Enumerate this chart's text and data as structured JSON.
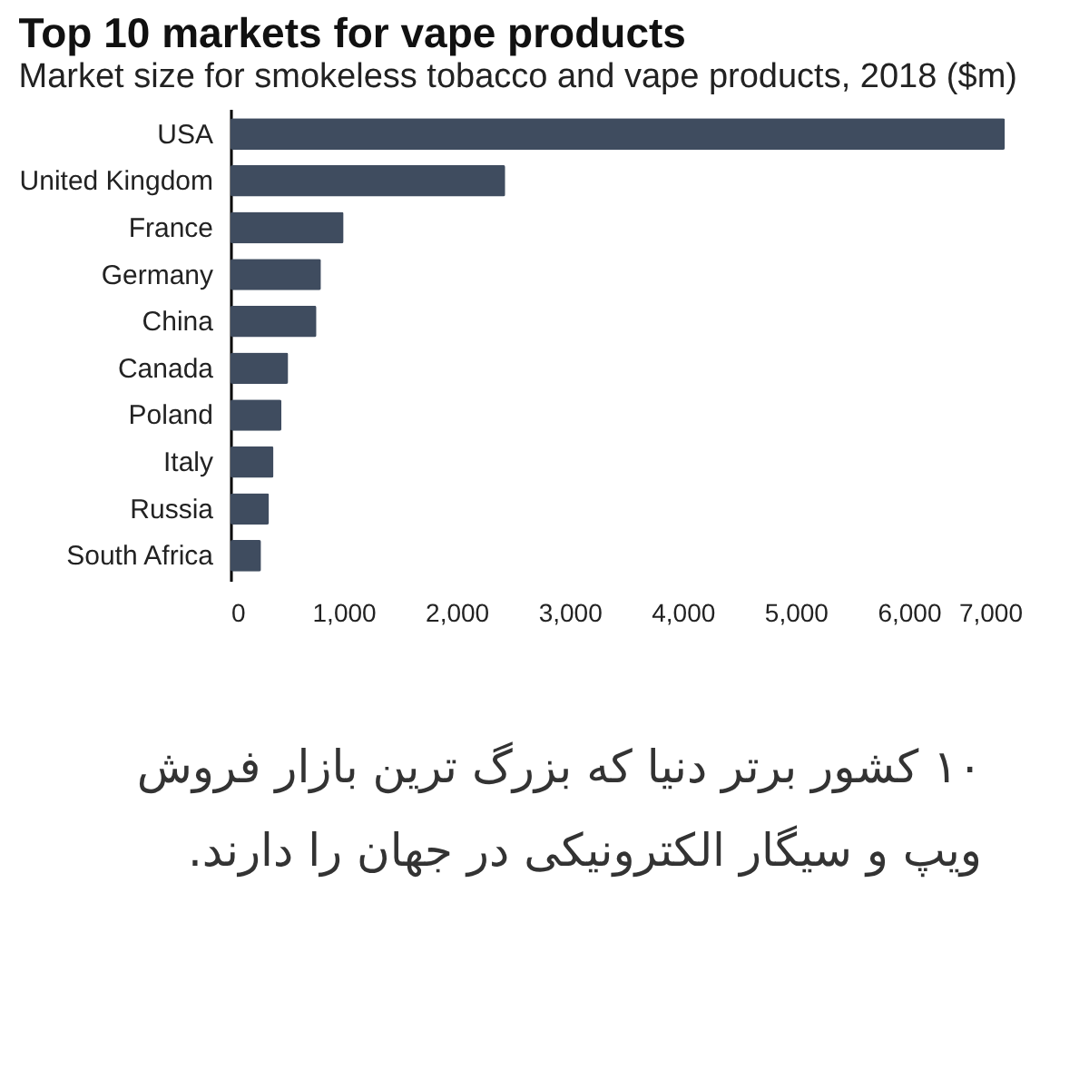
{
  "chart_data": {
    "type": "bar",
    "orientation": "horizontal",
    "title": "Top 10 markets for vape products",
    "subtitle": "Market size for smokeless tobacco and vape products, 2018 ($m)",
    "categories": [
      "USA",
      "United Kingdom",
      "France",
      "Germany",
      "China",
      "Canada",
      "Poland",
      "Italy",
      "Russia",
      "South Africa"
    ],
    "values": [
      6850,
      2430,
      1000,
      800,
      760,
      510,
      450,
      380,
      340,
      270
    ],
    "color": "#3f4c5f",
    "xlim": [
      0,
      7000
    ],
    "xticks": [
      0,
      {
        "value": 1000,
        "label": "1,000"
      },
      {
        "value": 2000,
        "label": "2,000"
      },
      {
        "value": 3000,
        "label": "3,000"
      },
      {
        "value": 4000,
        "label": "4,000"
      },
      {
        "value": 5000,
        "label": "5,000"
      },
      {
        "value": 6000,
        "label": "6,000"
      },
      {
        "value": 7000,
        "label": "7,000"
      }
    ],
    "annotations": [
      "۱۰ کشور برتر دنیا که بزرگ ترین بازار فروش ویپ و سیگار الکترونیکی در جهان را دارند."
    ]
  }
}
